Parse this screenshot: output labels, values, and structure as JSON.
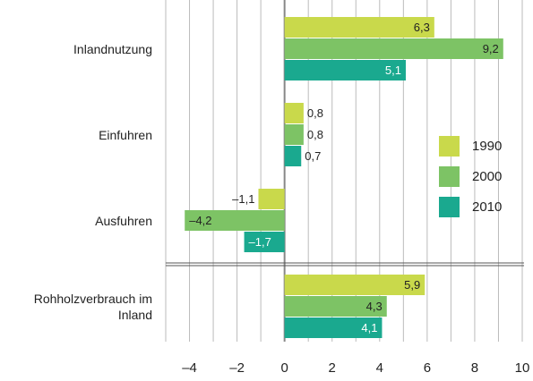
{
  "chart_data": {
    "type": "bar",
    "orientation": "horizontal",
    "categories": [
      "Inlandnutzung",
      "Einfuhren",
      "Ausfuhren",
      "Rohholzverbrauch im Inland"
    ],
    "series": [
      {
        "name": "1990",
        "color": "#c9d94b",
        "values": [
          6.3,
          0.8,
          -1.1,
          5.9
        ],
        "value_labels": [
          "6,3",
          "0,8",
          "–1,1",
          "5,9"
        ]
      },
      {
        "name": "2000",
        "color": "#7dc365",
        "values": [
          9.2,
          0.8,
          -4.2,
          4.3
        ],
        "value_labels": [
          "9,2",
          "0,8",
          "–4,2",
          "4,3"
        ]
      },
      {
        "name": "2010",
        "color": "#1aa98f",
        "values": [
          5.1,
          0.7,
          -1.7,
          4.1
        ],
        "value_labels": [
          "5,1",
          "0,7",
          "–1,7",
          "4,1"
        ]
      }
    ],
    "xlim": [
      -5,
      10
    ],
    "xticks": [
      {
        "value": -4,
        "label": "–4"
      },
      {
        "value": -2,
        "label": "–2"
      },
      0,
      2,
      4,
      6,
      8,
      10
    ],
    "minor_xticks": [
      -5,
      -3,
      -1,
      1,
      3,
      5,
      7,
      9
    ],
    "grid": true,
    "legend": "right"
  }
}
